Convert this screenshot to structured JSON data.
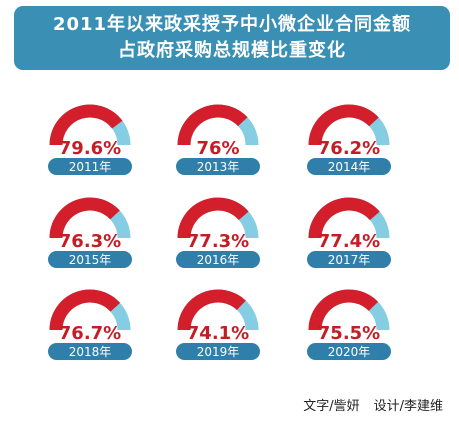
{
  "title": {
    "line1": "2011年以来政采授予中小微企业合同金额",
    "line2": "占政府采购总规模比重变化"
  },
  "colors": {
    "banner": "#3a8fb4",
    "share": "#d21f2b",
    "remainder": "#85cde3",
    "label_pill": "#2f7faa",
    "value_text": "#c41d26"
  },
  "chart_data": {
    "type": "gauge",
    "categories": [
      "2011年",
      "2013年",
      "2014年",
      "2015年",
      "2016年",
      "2017年",
      "2018年",
      "2019年",
      "2020年"
    ],
    "value_labels": [
      "79.6%",
      "76%",
      "76.2%",
      "76.3%",
      "77.3%",
      "77.4%",
      "76.7%",
      "74.1%",
      "75.5%"
    ],
    "values": [
      79.6,
      76,
      76.2,
      76.3,
      77.3,
      77.4,
      76.7,
      74.1,
      75.5
    ],
    "ylim": [
      0,
      100
    ]
  },
  "credits": {
    "text": "文字/訾妍",
    "design": "设计/李建维"
  }
}
